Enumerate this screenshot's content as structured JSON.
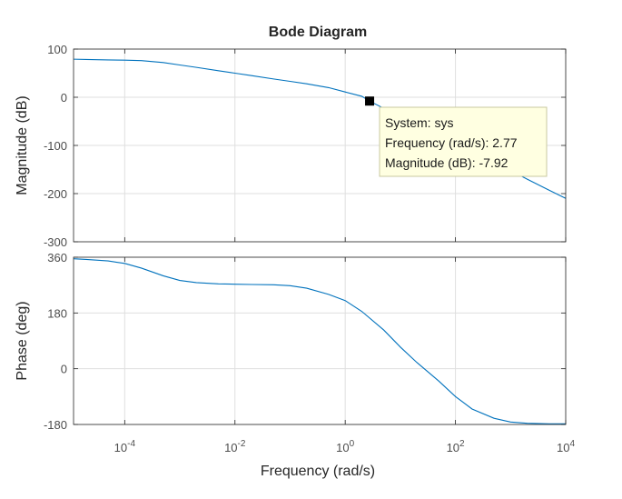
{
  "chart_data": {
    "type": "line",
    "title": "Bode Diagram",
    "xlabel": "Frequency  (rad/s)",
    "x_scale": "log",
    "xlim": [
      1.18e-05,
      10000
    ],
    "xticks": [
      {
        "value": 0.0001,
        "base": "10",
        "exp": "-4"
      },
      {
        "value": 0.01,
        "base": "10",
        "exp": "-2"
      },
      {
        "value": 1,
        "base": "10",
        "exp": "0"
      },
      {
        "value": 100,
        "base": "10",
        "exp": "2"
      },
      {
        "value": 10000,
        "base": "10",
        "exp": "4"
      }
    ],
    "grid": true,
    "color": "#0072bd",
    "panels": [
      {
        "ylabel": "Magnitude (dB)",
        "ylim": [
          -300,
          100
        ],
        "yticks": [
          100,
          0,
          -100,
          -200,
          -300
        ],
        "x": [
          1.18e-05,
          2e-05,
          5e-05,
          0.0001,
          0.0002,
          0.0005,
          0.001,
          0.002,
          0.005,
          0.01,
          0.02,
          0.05,
          0.1,
          0.2,
          0.5,
          1,
          2,
          2.77,
          5,
          10,
          20,
          50,
          100,
          200,
          500,
          1000,
          2000,
          5000,
          10000
        ],
        "y": [
          79,
          78.5,
          77.5,
          77,
          76,
          72,
          67,
          62,
          55,
          50,
          45,
          38,
          33,
          28,
          20,
          11,
          2,
          -7.92,
          -23,
          -40,
          -57,
          -80,
          -95,
          -112,
          -135,
          -152,
          -170,
          -193,
          -210
        ]
      },
      {
        "ylabel": "Phase (deg)",
        "ylim": [
          -180,
          360
        ],
        "yticks": [
          360,
          180,
          0,
          -180
        ],
        "x": [
          1.18e-05,
          2e-05,
          5e-05,
          0.0001,
          0.0002,
          0.0005,
          0.001,
          0.002,
          0.005,
          0.01,
          0.02,
          0.05,
          0.1,
          0.2,
          0.5,
          1,
          2,
          5,
          10,
          20,
          50,
          100,
          200,
          500,
          1000,
          2000,
          5000,
          10000
        ],
        "y": [
          355,
          353,
          348,
          340,
          325,
          300,
          285,
          278,
          274,
          273,
          272,
          271,
          268,
          260,
          240,
          220,
          185,
          125,
          70,
          20,
          -40,
          -90,
          -130,
          -160,
          -172,
          -176,
          -178,
          -178
        ]
      }
    ],
    "datatip": {
      "x": 2.77,
      "y": -7.92,
      "lines": [
        "System: sys",
        "Frequency (rad/s): 2.77",
        "Magnitude (dB): -7.92"
      ]
    }
  }
}
